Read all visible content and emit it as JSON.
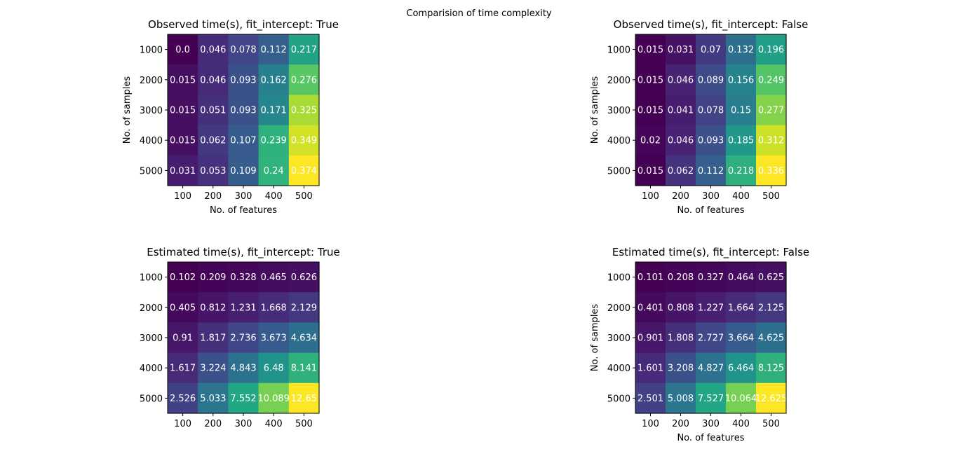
{
  "figure_title": "Comparision of time complexity",
  "chart_data": [
    {
      "type": "heatmap",
      "title": "Observed time(s), fit_intercept: True",
      "xlabel": "No. of features",
      "ylabel": "No. of samples",
      "x_ticks": [
        "100",
        "200",
        "300",
        "400",
        "500"
      ],
      "y_ticks": [
        "1000",
        "2000",
        "3000",
        "4000",
        "5000"
      ],
      "colormap": "viridis",
      "values": [
        [
          "0.0",
          "0.046",
          "0.078",
          "0.112",
          "0.217"
        ],
        [
          "0.015",
          "0.046",
          "0.093",
          "0.162",
          "0.276"
        ],
        [
          "0.015",
          "0.051",
          "0.093",
          "0.171",
          "0.325"
        ],
        [
          "0.015",
          "0.062",
          "0.107",
          "0.239",
          "0.349"
        ],
        [
          "0.031",
          "0.053",
          "0.109",
          "0.24",
          "0.374"
        ]
      ]
    },
    {
      "type": "heatmap",
      "title": "Observed time(s), fit_intercept: False",
      "xlabel": "No. of features",
      "ylabel": "No. of samples",
      "x_ticks": [
        "100",
        "200",
        "300",
        "400",
        "500"
      ],
      "y_ticks": [
        "1000",
        "2000",
        "3000",
        "4000",
        "5000"
      ],
      "colormap": "viridis",
      "values": [
        [
          "0.015",
          "0.031",
          "0.07",
          "0.132",
          "0.196"
        ],
        [
          "0.015",
          "0.046",
          "0.089",
          "0.156",
          "0.249"
        ],
        [
          "0.015",
          "0.041",
          "0.078",
          "0.15",
          "0.277"
        ],
        [
          "0.02",
          "0.046",
          "0.093",
          "0.185",
          "0.312"
        ],
        [
          "0.015",
          "0.062",
          "0.112",
          "0.218",
          "0.336"
        ]
      ]
    },
    {
      "type": "heatmap",
      "title": "Estimated time(s), fit_intercept: True",
      "xlabel": "",
      "ylabel": "",
      "x_ticks": [
        "100",
        "200",
        "300",
        "400",
        "500"
      ],
      "y_ticks": [
        "1000",
        "2000",
        "3000",
        "4000",
        "5000"
      ],
      "colormap": "viridis",
      "values": [
        [
          "0.102",
          "0.209",
          "0.328",
          "0.465",
          "0.626"
        ],
        [
          "0.405",
          "0.812",
          "1.231",
          "1.668",
          "2.129"
        ],
        [
          "0.91",
          "1.817",
          "2.736",
          "3.673",
          "4.634"
        ],
        [
          "1.617",
          "3.224",
          "4.843",
          "6.48",
          "8.141"
        ],
        [
          "2.526",
          "5.033",
          "7.552",
          "10.089",
          "12.65"
        ]
      ]
    },
    {
      "type": "heatmap",
      "title": "Estimated time(s), fit_intercept: False",
      "xlabel": "No. of features",
      "ylabel": "No. of samples",
      "x_ticks": [
        "100",
        "200",
        "300",
        "400",
        "500"
      ],
      "y_ticks": [
        "1000",
        "2000",
        "3000",
        "4000",
        "5000"
      ],
      "colormap": "viridis",
      "values": [
        [
          "0.101",
          "0.208",
          "0.327",
          "0.464",
          "0.625"
        ],
        [
          "0.401",
          "0.808",
          "1.227",
          "1.664",
          "2.125"
        ],
        [
          "0.901",
          "1.808",
          "2.727",
          "3.664",
          "4.625"
        ],
        [
          "1.601",
          "3.208",
          "4.827",
          "6.464",
          "8.125"
        ],
        [
          "2.501",
          "5.008",
          "7.527",
          "10.064",
          "12.625"
        ]
      ]
    }
  ]
}
